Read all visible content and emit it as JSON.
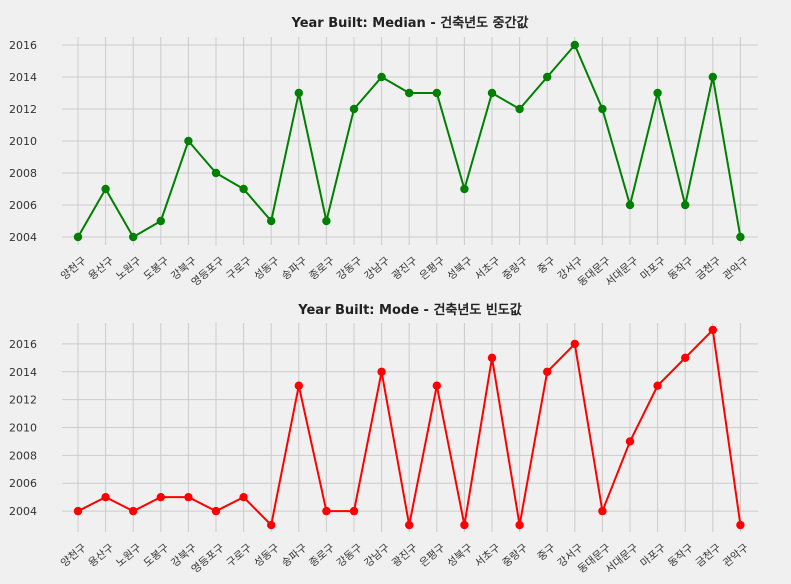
{
  "chart_data": [
    {
      "type": "line",
      "title": "Year Built: Median - 건축년도 중간값",
      "color": "#008000",
      "categories": [
        "양천구",
        "용산구",
        "노원구",
        "도봉구",
        "강북구",
        "영등포구",
        "구로구",
        "성동구",
        "송파구",
        "종로구",
        "강동구",
        "강남구",
        "광진구",
        "은평구",
        "성북구",
        "서초구",
        "중랑구",
        "중구",
        "강서구",
        "동대문구",
        "서대문구",
        "마포구",
        "동작구",
        "금천구",
        "관악구"
      ],
      "values": [
        2004,
        2007,
        2004,
        2005,
        2010,
        2008,
        2007,
        2005,
        2013,
        2005,
        2012,
        2014,
        2013,
        2013,
        2007,
        2013,
        2012,
        2014,
        2016,
        2012,
        2006,
        2013,
        2006,
        2014,
        2004
      ],
      "yticks": [
        "2004",
        "2006",
        "2008",
        "2010",
        "2012",
        "2014",
        "2016"
      ],
      "ylim": [
        2003.5,
        2016.5
      ],
      "grid": true
    },
    {
      "type": "line",
      "title": "Year Built: Mode - 건축년도 빈도값",
      "color": "#ff0000",
      "categories": [
        "양천구",
        "용산구",
        "노원구",
        "도봉구",
        "강북구",
        "영등포구",
        "구로구",
        "성동구",
        "송파구",
        "종로구",
        "강동구",
        "강남구",
        "광진구",
        "은평구",
        "성북구",
        "서초구",
        "중랑구",
        "중구",
        "강서구",
        "동대문구",
        "서대문구",
        "마포구",
        "동작구",
        "금천구",
        "관악구"
      ],
      "values": [
        2004,
        2005,
        2004,
        2005,
        2005,
        2004,
        2005,
        2003,
        2013,
        2004,
        2004,
        2014,
        2003,
        2013,
        2003,
        2015,
        2003,
        2014,
        2016,
        2004,
        2009,
        2013,
        2015,
        2017,
        2003
      ],
      "yticks": [
        "2004",
        "2006",
        "2008",
        "2010",
        "2012",
        "2014",
        "2016"
      ],
      "ylim": [
        2002.5,
        2017.5
      ],
      "grid": true
    }
  ]
}
